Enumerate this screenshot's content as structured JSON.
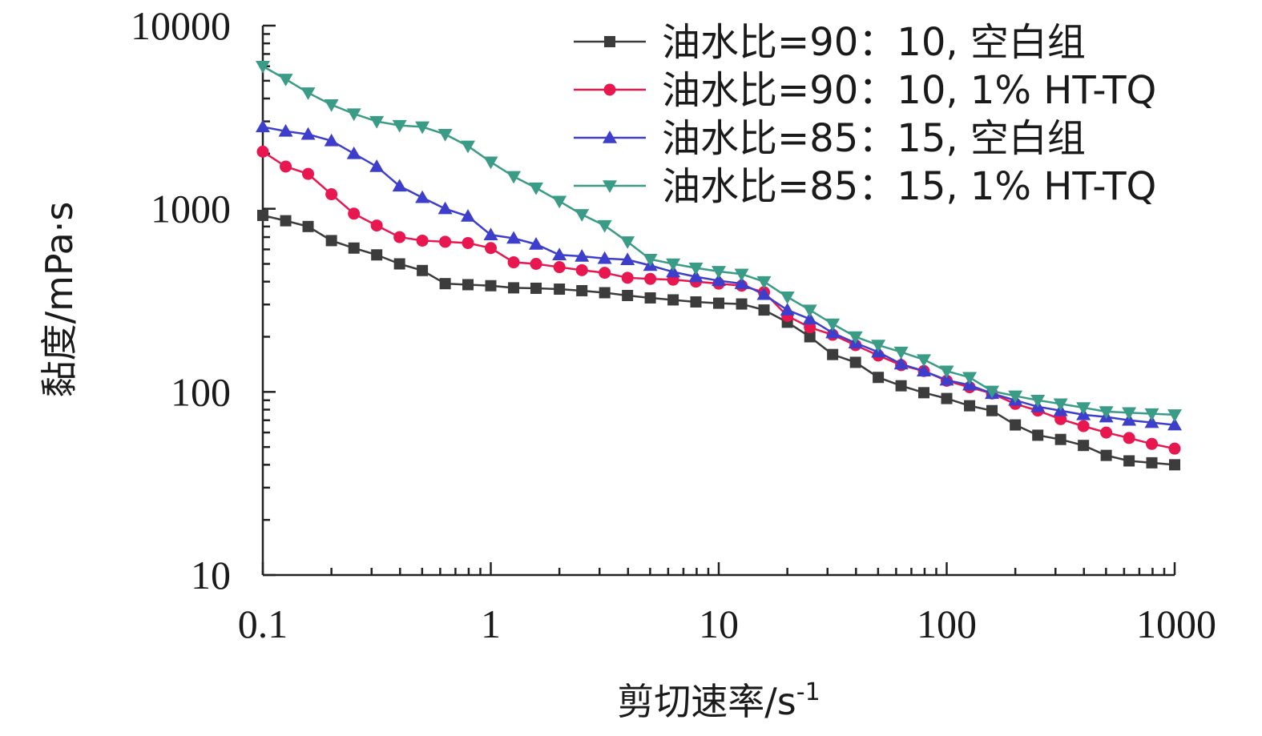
{
  "chart_data": {
    "type": "line",
    "xlabel": "剪切速率/s",
    "xlabel_superscript": "-1",
    "ylabel": "黏度/mPa·s",
    "xscale": "log",
    "yscale": "log",
    "xlim": [
      0.1,
      1000
    ],
    "ylim": [
      10,
      10000
    ],
    "x_ticks": [
      0.1,
      1,
      10,
      100,
      1000
    ],
    "x_tick_labels": [
      "0.1",
      "1",
      "10",
      "100",
      "1000"
    ],
    "y_ticks": [
      10,
      100,
      1000,
      10000
    ],
    "y_tick_labels": [
      "10",
      "100",
      "1000",
      "10000"
    ],
    "grid": false,
    "legend_position": "top-right",
    "x": [
      0.1,
      0.126,
      0.158,
      0.2,
      0.251,
      0.316,
      0.398,
      0.501,
      0.631,
      0.794,
      1,
      1.26,
      1.58,
      2,
      2.51,
      3.16,
      3.98,
      5.01,
      6.31,
      7.94,
      10,
      12.6,
      15.8,
      20,
      25.1,
      31.6,
      39.8,
      50.1,
      63.1,
      79.4,
      100,
      126,
      158,
      200,
      251,
      316,
      398,
      501,
      631,
      794,
      1000
    ],
    "series": [
      {
        "name": "油水比=90：10, 空白组",
        "color": "#3c3c3c",
        "marker": "square",
        "values": [
          920,
          860,
          800,
          670,
          610,
          560,
          500,
          460,
          390,
          385,
          380,
          370,
          368,
          364,
          357,
          348,
          336,
          326,
          318,
          310,
          305,
          302,
          280,
          240,
          200,
          160,
          145,
          120,
          108,
          99,
          92,
          84,
          79,
          66,
          58,
          55,
          51,
          45,
          42,
          41,
          40
        ]
      },
      {
        "name": "油水比=90：10, 1% HT-TQ",
        "color": "#e8174f",
        "marker": "circle",
        "values": [
          2050,
          1700,
          1550,
          1200,
          940,
          810,
          700,
          670,
          660,
          650,
          610,
          510,
          500,
          480,
          462,
          447,
          420,
          414,
          410,
          400,
          390,
          380,
          350,
          260,
          225,
          205,
          180,
          158,
          140,
          130,
          115,
          106,
          98,
          86,
          79,
          71,
          65,
          60,
          56,
          52,
          49
        ]
      },
      {
        "name": "油水比=85：15, 空白组",
        "color": "#3d3fcc",
        "marker": "triangle-up",
        "values": [
          2800,
          2650,
          2550,
          2350,
          2000,
          1700,
          1330,
          1150,
          1000,
          910,
          720,
          690,
          640,
          560,
          550,
          535,
          527,
          490,
          452,
          425,
          405,
          390,
          340,
          280,
          250,
          210,
          185,
          165,
          142,
          130,
          116,
          109,
          98,
          90,
          83,
          79,
          75,
          73,
          70,
          68,
          66
        ]
      },
      {
        "name": "油水比=85：15, 1% HT-TQ",
        "color": "#3a9c86",
        "marker": "triangle-down",
        "values": [
          6000,
          5100,
          4300,
          3700,
          3300,
          3000,
          2850,
          2800,
          2550,
          2200,
          1800,
          1500,
          1300,
          1100,
          930,
          810,
          660,
          530,
          500,
          475,
          455,
          440,
          400,
          330,
          280,
          235,
          200,
          180,
          165,
          150,
          130,
          120,
          101,
          95,
          90,
          86,
          82,
          78,
          77,
          76,
          75
        ]
      }
    ]
  }
}
